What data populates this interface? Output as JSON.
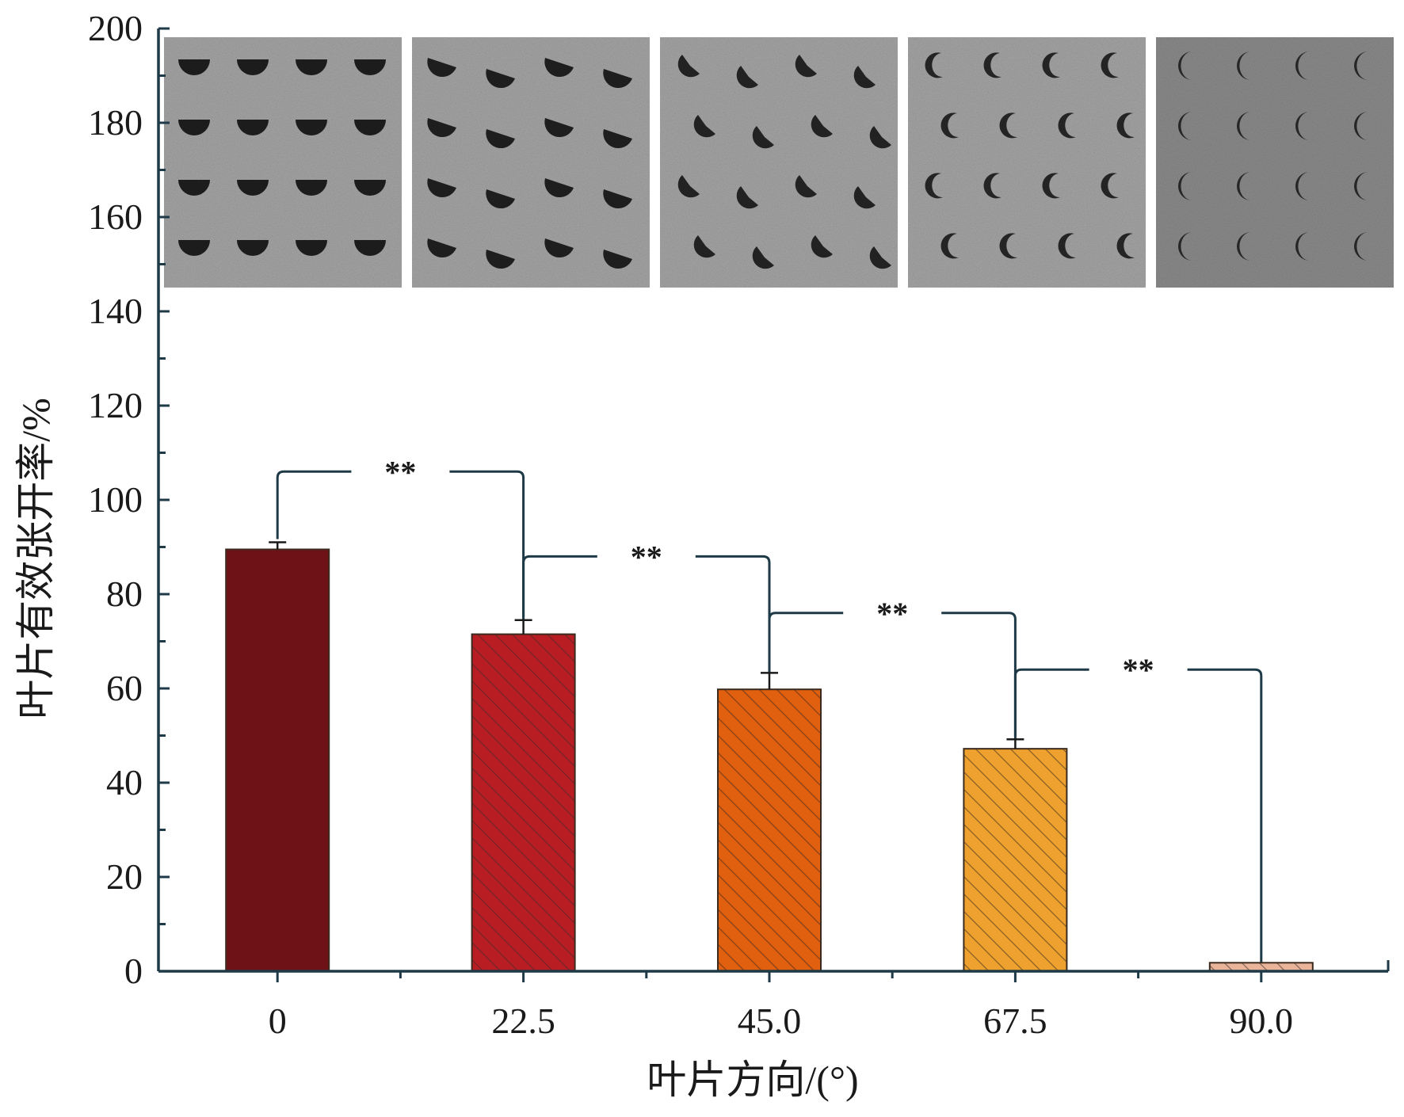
{
  "chart_data": {
    "type": "bar",
    "categories": [
      "0",
      "22.5",
      "45.0",
      "67.5",
      "90.0"
    ],
    "values": [
      89.5,
      71.5,
      59.8,
      47.2,
      1.8
    ],
    "errors": [
      1.5,
      3.0,
      3.5,
      2.0,
      0
    ],
    "xlabel": "叶片方向/(°)",
    "ylabel": "叶片有效张开率/%",
    "ylim": [
      0,
      200
    ],
    "yticks": [
      "0",
      "20",
      "40",
      "60",
      "80",
      "100",
      "120",
      "140",
      "160",
      "180",
      "200"
    ],
    "colors": [
      "#6e1218",
      "#b81d24",
      "#e0600f",
      "#eea12e",
      "#e9b49a"
    ],
    "hatched": [
      false,
      true,
      true,
      true,
      true
    ],
    "significance": [
      {
        "from": 0,
        "to": 1,
        "label": "**",
        "y": 106
      },
      {
        "from": 1,
        "to": 2,
        "label": "**",
        "y": 88
      },
      {
        "from": 2,
        "to": 3,
        "label": "**",
        "y": 76
      },
      {
        "from": 3,
        "to": 4,
        "label": "**",
        "y": 64
      }
    ],
    "inset_images": [
      {
        "name": "photo-0",
        "marks": "full"
      },
      {
        "name": "photo-22-5",
        "marks": "wide"
      },
      {
        "name": "photo-45",
        "marks": "medium"
      },
      {
        "name": "photo-67-5",
        "marks": "narrow"
      },
      {
        "name": "photo-90",
        "marks": "crescent"
      }
    ]
  }
}
